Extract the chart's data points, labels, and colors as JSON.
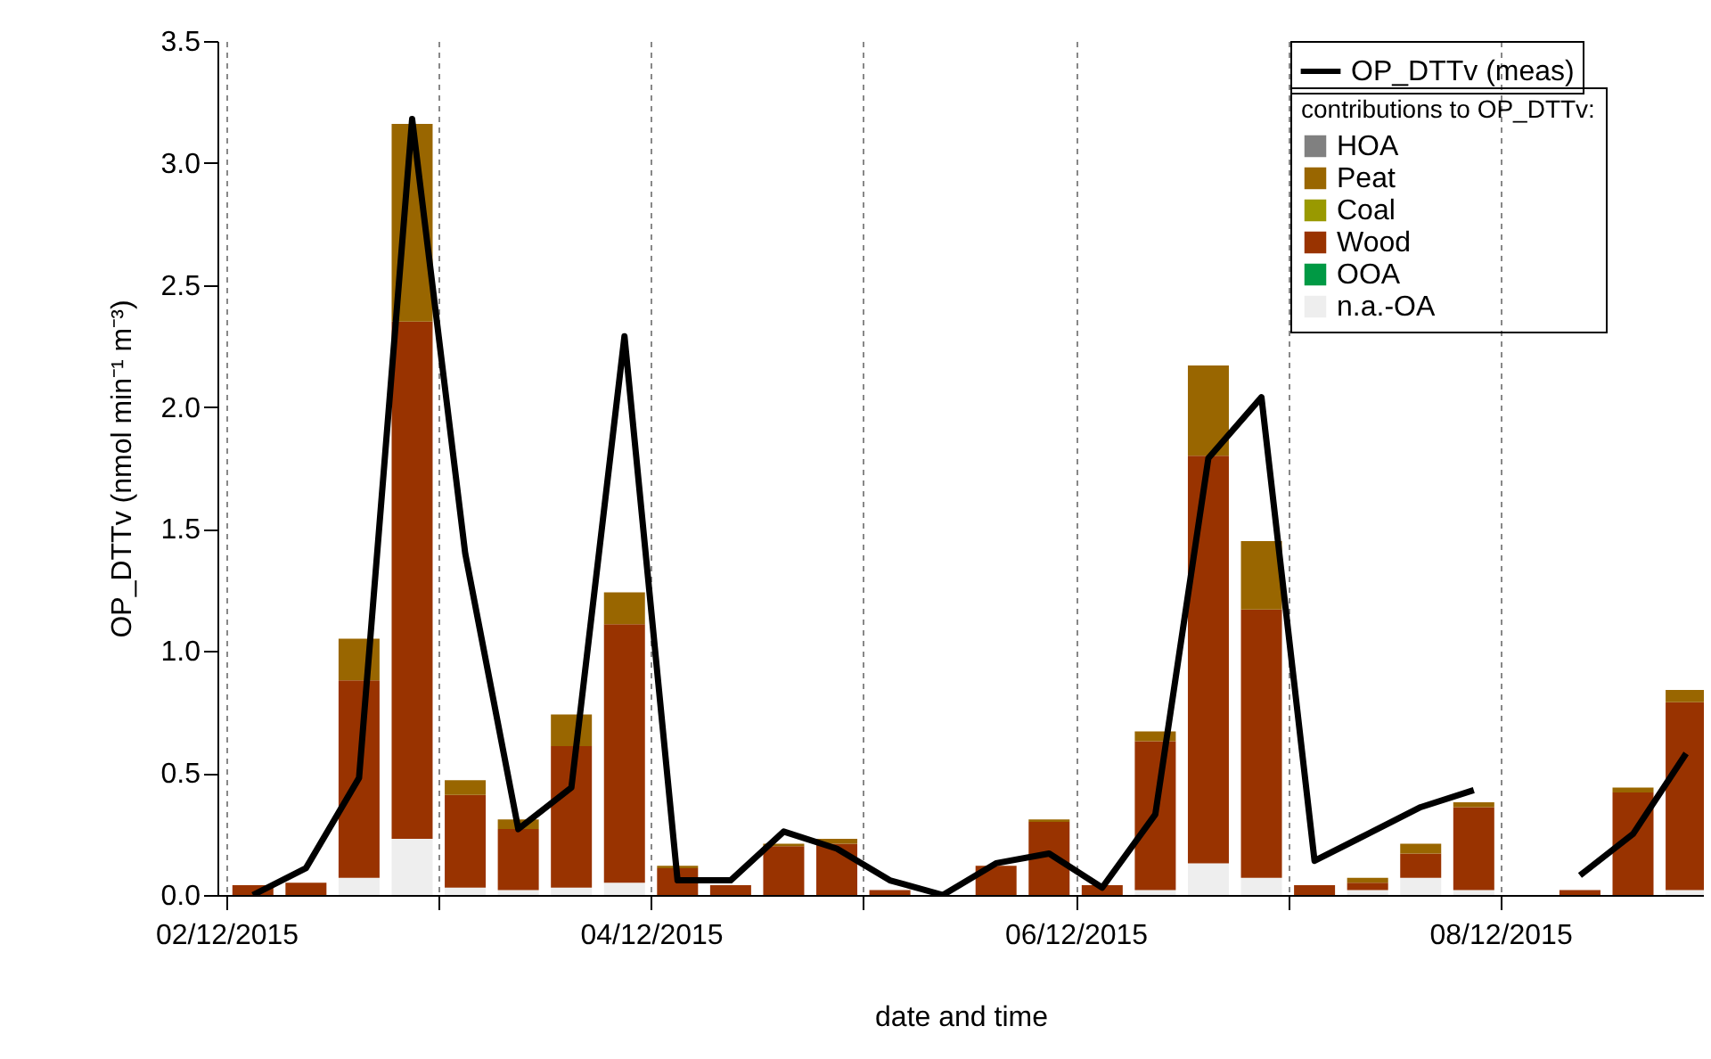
{
  "chart_data": {
    "type": "bar",
    "stacked": true,
    "xlabel": "date and time",
    "ylabel": "OP_DTTv (nmol min⁻¹ m⁻³)",
    "legend_title": "contributions to OP_DTTv:",
    "legend": "top right",
    "grid": "x",
    "x": [
      "2015-12-02T03:00",
      "2015-12-02T09:00",
      "2015-12-02T15:00",
      "2015-12-02T21:00",
      "2015-12-03T03:00",
      "2015-12-03T09:00",
      "2015-12-03T15:00",
      "2015-12-03T21:00",
      "2015-12-04T03:00",
      "2015-12-04T09:00",
      "2015-12-04T15:00",
      "2015-12-04T21:00",
      "2015-12-05T03:00",
      "2015-12-05T09:00",
      "2015-12-05T15:00",
      "2015-12-05T21:00",
      "2015-12-06T03:00",
      "2015-12-06T09:00",
      "2015-12-06T15:00",
      "2015-12-06T21:00",
      "2015-12-07T03:00",
      "2015-12-07T09:00",
      "2015-12-07T15:00",
      "2015-12-07T21:00",
      "2015-12-08T03:00",
      "2015-12-08T09:00",
      "2015-12-08T15:00",
      "2015-12-08T21:00"
    ],
    "xlim": [
      "2015-12-02T00:00",
      "2015-12-08T22:00"
    ],
    "xticks": [
      {
        "value": "2015-12-02",
        "label": "02/12/2015"
      },
      {
        "value": "2015-12-03",
        "label": null
      },
      {
        "value": "2015-12-04",
        "label": "04/12/2015"
      },
      {
        "value": "2015-12-05",
        "label": null
      },
      {
        "value": "2015-12-06",
        "label": "06/12/2015"
      },
      {
        "value": "2015-12-07",
        "label": null
      },
      {
        "value": "2015-12-08",
        "label": "08/12/2015"
      }
    ],
    "ylim": [
      0,
      3.5
    ],
    "yticks": [
      {
        "value": 0,
        "label": "0.0"
      },
      {
        "value": 0.5,
        "label": "0.5"
      },
      {
        "value": 1,
        "label": "1.0"
      },
      {
        "value": 1.5,
        "label": "1.5"
      },
      {
        "value": 2,
        "label": "2.0"
      },
      {
        "value": 2.5,
        "label": "2.5"
      },
      {
        "value": 3,
        "label": "3.0"
      },
      {
        "value": 3.5,
        "label": "3.5"
      }
    ],
    "series": [
      {
        "name": "n.a.-OA",
        "color": "#eeeeee",
        "values": [
          0,
          0,
          0.07,
          0.23,
          0.03,
          0.02,
          0.03,
          0.05,
          0,
          0,
          0,
          0,
          0,
          0,
          null,
          0,
          0,
          0.02,
          0.13,
          0.07,
          0,
          0.02,
          0.07,
          0.02,
          null,
          0,
          null,
          0.02
        ]
      },
      {
        "name": "OOA",
        "color": "#009944",
        "values": [
          0,
          0,
          0,
          0,
          0,
          0,
          0,
          0,
          0,
          0,
          0,
          0,
          0,
          0,
          0,
          0,
          0,
          0,
          0,
          0,
          0,
          0,
          0,
          0,
          null,
          0,
          0,
          0
        ]
      },
      {
        "name": "Wood",
        "color": "#993300",
        "values": [
          0.04,
          0.05,
          0.81,
          2.12,
          0.38,
          0.25,
          0.58,
          1.06,
          0.11,
          0.04,
          0.2,
          0.21,
          0.02,
          null,
          0.12,
          0.3,
          0.04,
          0.61,
          1.67,
          1.1,
          0.04,
          0.03,
          0.1,
          0.34,
          null,
          0.02,
          0.42,
          0.77
        ]
      },
      {
        "name": "Coal",
        "color": "#999900",
        "values": [
          0,
          0,
          0,
          0,
          0,
          0,
          0,
          0,
          0,
          0,
          0,
          0,
          0,
          0,
          0,
          0,
          0,
          0,
          0,
          0,
          0,
          0,
          0,
          0,
          null,
          0,
          0,
          0
        ]
      },
      {
        "name": "Peat",
        "color": "#996600",
        "values": [
          0,
          0,
          0.17,
          0.81,
          0.06,
          0.04,
          0.13,
          0.13,
          0.01,
          0,
          0.01,
          0.02,
          0,
          0,
          0,
          0.01,
          0,
          0.04,
          0.37,
          0.28,
          0,
          0.02,
          0.04,
          0.02,
          null,
          0,
          0.02,
          0.05
        ]
      },
      {
        "name": "HOA",
        "color": "#808080",
        "values": [
          0,
          0,
          0,
          0,
          0,
          0,
          0,
          0,
          0,
          0,
          0,
          0,
          0,
          0,
          0,
          0,
          0,
          0,
          0,
          0,
          0,
          0,
          0,
          0,
          null,
          0,
          0,
          0
        ]
      },
      {
        "name": "OP_DTTv (meas)",
        "type": "line",
        "color": "#000000",
        "values": [
          0.0,
          0.11,
          0.48,
          3.18,
          1.4,
          0.27,
          0.44,
          2.29,
          0.06,
          0.06,
          0.26,
          0.19,
          0.06,
          0.0,
          0.13,
          0.17,
          0.03,
          0.33,
          1.79,
          2.04,
          0.14,
          0.25,
          0.36,
          0.43,
          null,
          0.08,
          0.25,
          0.58
        ]
      }
    ]
  }
}
